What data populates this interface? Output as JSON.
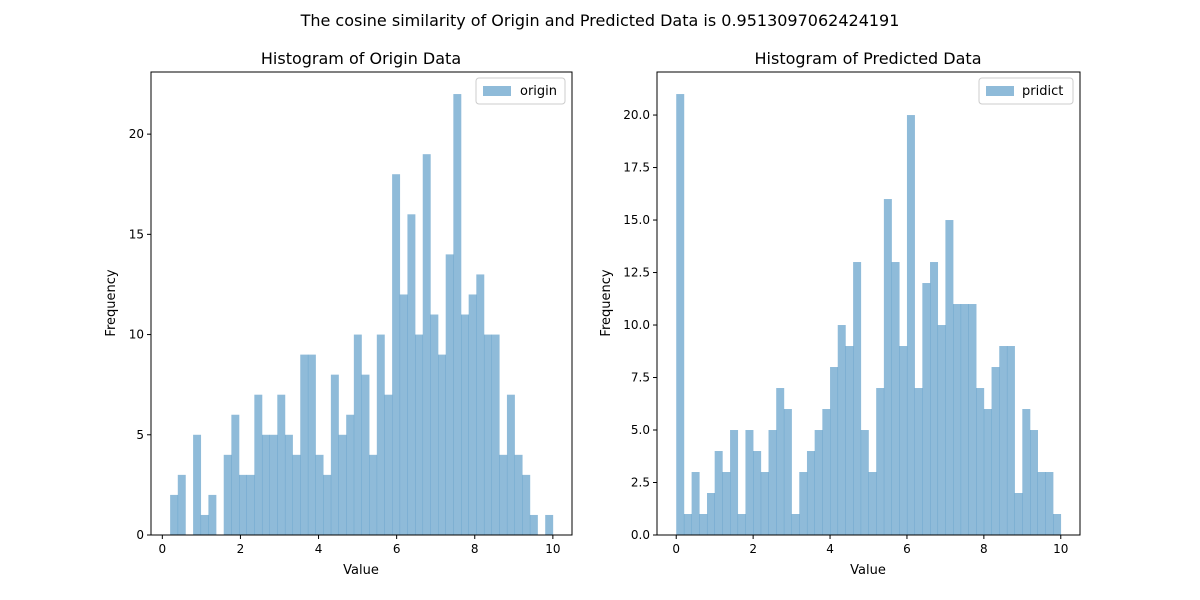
{
  "figure": {
    "suptitle": "The cosine similarity of Origin and Predicted Data is 0.9513097062424191"
  },
  "colors": {
    "bar": "#1f77b4",
    "bar_opacity": 0.5,
    "axis": "#000000",
    "legend_border": "#cccccc"
  },
  "chart_data": [
    {
      "type": "bar",
      "title": "Histogram of Origin Data",
      "xlabel": "Value",
      "ylabel": "Frequency",
      "legend": {
        "label": "origin",
        "placement": "upper right"
      },
      "bin_start": 0.2,
      "bin_width": 0.196,
      "values": [
        2,
        3,
        0,
        5,
        1,
        2,
        0,
        4,
        6,
        3,
        3,
        7,
        5,
        5,
        7,
        5,
        4,
        9,
        9,
        4,
        3,
        8,
        5,
        6,
        10,
        8,
        4,
        10,
        7,
        18,
        12,
        16,
        10,
        19,
        11,
        9,
        14,
        22,
        11,
        12,
        13,
        10,
        10,
        4,
        7,
        4,
        3,
        1,
        0,
        1
      ],
      "xlim": [
        -0.29,
        10.49
      ],
      "ylim": [
        0,
        23.1
      ],
      "xticks": [
        0,
        2,
        4,
        6,
        8,
        10
      ],
      "xtick_labels": [
        "0",
        "2",
        "4",
        "6",
        "8",
        "10"
      ],
      "yticks": [
        0,
        5,
        10,
        15,
        20
      ],
      "ytick_labels": [
        "0",
        "5",
        "10",
        "15",
        "20"
      ],
      "grid": false
    },
    {
      "type": "bar",
      "title": "Histogram of Predicted Data",
      "xlabel": "Value",
      "ylabel": "Frequency",
      "legend": {
        "label": "pridict",
        "placement": "upper right"
      },
      "bin_start": 0.0,
      "bin_width": 0.2,
      "values": [
        21,
        1,
        3,
        1,
        2,
        4,
        3,
        5,
        1,
        5,
        4,
        3,
        5,
        7,
        6,
        1,
        3,
        4,
        5,
        6,
        8,
        10,
        9,
        13,
        5,
        3,
        7,
        16,
        13,
        9,
        20,
        7,
        12,
        13,
        10,
        15,
        11,
        11,
        11,
        7,
        6,
        8,
        9,
        9,
        2,
        6,
        5,
        3,
        3,
        1
      ],
      "xlim": [
        -0.5,
        10.5
      ],
      "ylim": [
        0,
        22.05
      ],
      "xticks": [
        0,
        2,
        4,
        6,
        8,
        10
      ],
      "xtick_labels": [
        "0",
        "2",
        "4",
        "6",
        "8",
        "10"
      ],
      "yticks": [
        0,
        2.5,
        5,
        7.5,
        10,
        12.5,
        15,
        17.5,
        20
      ],
      "ytick_labels": [
        "0.0",
        "2.5",
        "5.0",
        "7.5",
        "10.0",
        "12.5",
        "15.0",
        "17.5",
        "20.0"
      ],
      "grid": false
    }
  ]
}
